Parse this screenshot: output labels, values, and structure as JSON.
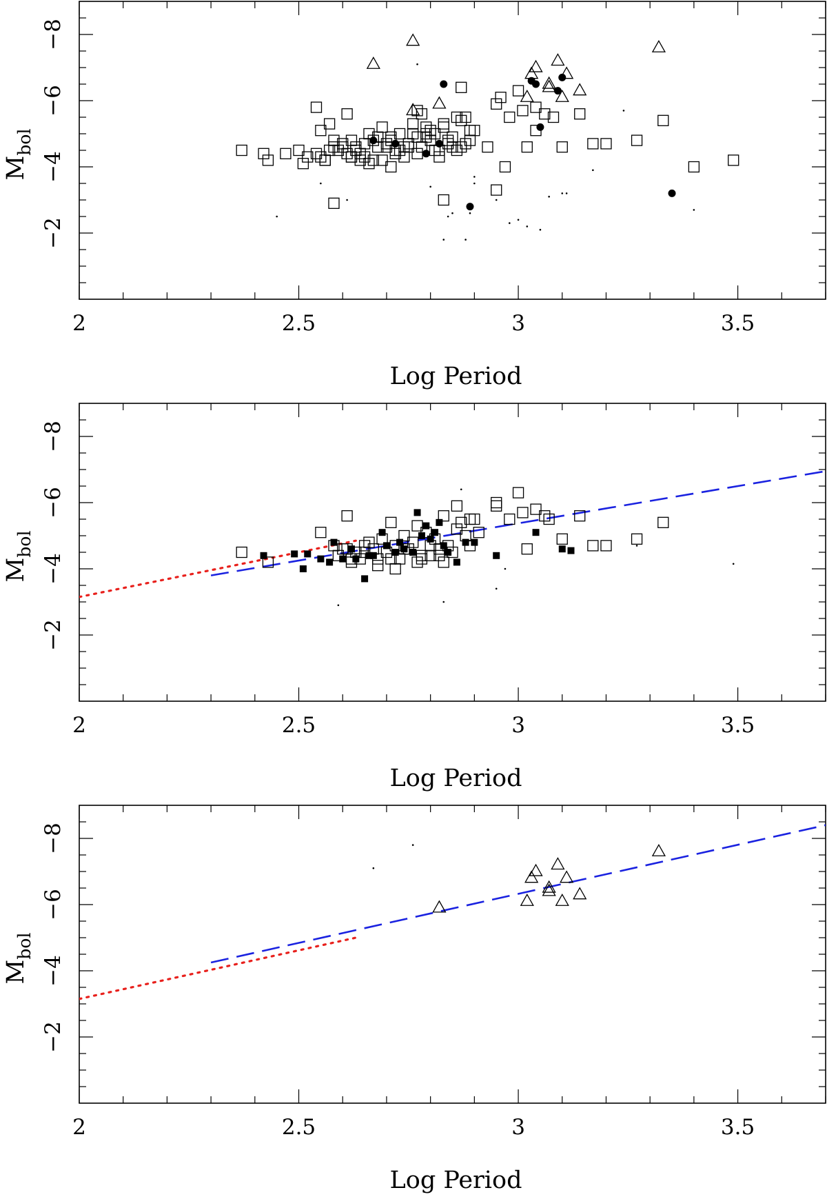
{
  "chart_data": [
    {
      "type": "scatter",
      "panel": "top",
      "xlabel": "Log Period",
      "ylabel_main": "M",
      "ylabel_sub": "bol",
      "xlim": [
        2,
        3.7
      ],
      "ylim": [
        0,
        -9
      ],
      "xticks": [
        {
          "v": 2,
          "label": "2"
        },
        {
          "v": 2.5,
          "label": "2.5"
        },
        {
          "v": 3,
          "label": "3"
        },
        {
          "v": 3.5,
          "label": "3.5"
        }
      ],
      "yticks": [
        {
          "v": -2,
          "label": "−2"
        },
        {
          "v": -4,
          "label": "−4"
        },
        {
          "v": -6,
          "label": "−6"
        },
        {
          "v": -8,
          "label": "−8"
        }
      ],
      "series": [
        {
          "name": "open-squares",
          "marker": "open-square",
          "x": [
            2.37,
            2.42,
            2.43,
            2.47,
            2.5,
            2.51,
            2.52,
            2.54,
            2.55,
            2.56,
            2.57,
            2.58,
            2.59,
            2.6,
            2.61,
            2.62,
            2.63,
            2.64,
            2.65,
            2.66,
            2.67,
            2.68,
            2.69,
            2.7,
            2.71,
            2.72,
            2.73,
            2.74,
            2.75,
            2.76,
            2.77,
            2.78,
            2.79,
            2.8,
            2.81,
            2.82,
            2.83,
            2.84,
            2.85,
            2.86,
            2.87,
            2.88,
            2.89,
            2.9,
            2.58,
            2.64,
            2.69,
            2.72,
            2.6,
            2.55,
            2.66,
            2.74,
            2.78,
            2.82,
            2.86,
            2.62,
            2.7,
            2.76,
            2.8,
            2.84,
            2.68,
            2.73,
            2.79,
            2.83,
            2.88,
            2.57,
            2.65,
            2.71,
            2.77,
            2.85,
            2.61,
            2.67,
            2.75,
            2.81,
            2.87,
            2.89,
            2.63,
            2.71,
            2.79,
            2.54,
            2.56,
            2.62,
            2.95,
            2.96,
            2.98,
            3.0,
            3.01,
            3.02,
            3.04,
            3.06,
            3.08,
            3.1,
            3.14,
            3.17,
            3.2,
            3.27,
            3.33,
            3.4,
            3.49,
            2.58,
            2.83,
            2.95,
            2.87,
            2.77,
            2.93,
            2.97,
            3.04
          ],
          "y": [
            -4.5,
            -4.4,
            -4.2,
            -4.4,
            -4.5,
            -4.1,
            -4.3,
            -4.4,
            -5.1,
            -4.2,
            -5.3,
            -4.8,
            -4.5,
            -4.6,
            -5.6,
            -4.3,
            -4.5,
            -4.2,
            -4.7,
            -5.0,
            -4.8,
            -4.9,
            -5.2,
            -4.6,
            -4.8,
            -4.5,
            -5.0,
            -4.6,
            -4.7,
            -5.3,
            -4.9,
            -5.6,
            -5.2,
            -4.8,
            -5.0,
            -4.5,
            -5.2,
            -4.7,
            -4.9,
            -5.5,
            -5.4,
            -5.5,
            -4.8,
            -5.1,
            -4.6,
            -4.4,
            -4.2,
            -4.4,
            -4.7,
            -4.3,
            -4.1,
            -4.3,
            -4.6,
            -4.3,
            -4.5,
            -4.8,
            -4.7,
            -5.0,
            -5.1,
            -4.8,
            -4.6,
            -4.5,
            -4.9,
            -5.3,
            -4.7,
            -4.5,
            -4.3,
            -4.0,
            -4.4,
            -4.6,
            -4.4,
            -4.2,
            -4.6,
            -4.5,
            -4.6,
            -5.1,
            -4.6,
            -4.9,
            -5.0,
            -5.8,
            -4.2,
            -4.3,
            -5.9,
            -6.1,
            -5.5,
            -6.3,
            -5.7,
            -4.6,
            -5.1,
            -5.6,
            -5.5,
            -4.6,
            -5.6,
            -4.7,
            -4.7,
            -4.8,
            -5.4,
            -4.0,
            -4.2,
            -2.9,
            -3.0,
            -3.3,
            -6.4,
            -5.7,
            -4.6,
            -4.0,
            -5.8
          ]
        },
        {
          "name": "filled-circles",
          "marker": "filled-circle",
          "x": [
            2.83,
            2.89,
            2.79,
            3.03,
            3.04,
            3.05,
            3.09,
            3.1,
            3.35,
            2.72,
            2.67,
            2.82
          ],
          "y": [
            -6.5,
            -2.8,
            -4.4,
            -6.6,
            -6.5,
            -5.2,
            -6.3,
            -6.7,
            -3.2,
            -4.7,
            -4.8,
            -4.7
          ]
        },
        {
          "name": "open-triangles",
          "marker": "open-triangle",
          "x": [
            2.67,
            2.76,
            2.76,
            2.82,
            3.02,
            3.03,
            3.04,
            3.07,
            3.07,
            3.09,
            3.1,
            3.11,
            3.14,
            3.32
          ],
          "y": [
            -7.1,
            -7.8,
            -5.7,
            -5.9,
            -6.1,
            -6.8,
            -7.0,
            -6.5,
            -6.4,
            -7.2,
            -6.1,
            -6.8,
            -6.3,
            -7.6
          ]
        },
        {
          "name": "small-dots",
          "marker": "dot",
          "x": [
            2.45,
            2.55,
            2.61,
            2.77,
            2.84,
            2.85,
            2.88,
            2.9,
            2.98,
            3.0,
            3.02,
            3.05,
            3.1,
            3.17,
            3.24,
            3.4,
            2.83,
            2.89,
            2.95,
            2.9,
            3.07,
            3.11,
            2.8
          ],
          "y": [
            -2.5,
            -3.5,
            -3.0,
            -7.1,
            -2.5,
            -2.6,
            -1.8,
            -3.5,
            -2.3,
            -2.4,
            -2.2,
            -2.1,
            -3.2,
            -3.9,
            -5.7,
            -2.7,
            -1.8,
            -2.6,
            -3.0,
            -3.7,
            -3.1,
            -3.2,
            -3.4
          ]
        }
      ],
      "lines": []
    },
    {
      "type": "scatter",
      "panel": "middle",
      "xlabel": "Log Period",
      "ylabel_main": "M",
      "ylabel_sub": "bol",
      "xlim": [
        2,
        3.7
      ],
      "ylim": [
        0,
        -9
      ],
      "xticks": [
        {
          "v": 2,
          "label": "2"
        },
        {
          "v": 2.5,
          "label": "2.5"
        },
        {
          "v": 3,
          "label": "3"
        },
        {
          "v": 3.5,
          "label": "3.5"
        }
      ],
      "yticks": [
        {
          "v": -2,
          "label": "−2"
        },
        {
          "v": -4,
          "label": "−4"
        },
        {
          "v": -6,
          "label": "−6"
        },
        {
          "v": -8,
          "label": "−8"
        }
      ],
      "series": [
        {
          "name": "open-squares",
          "marker": "open-square",
          "x": [
            2.37,
            2.43,
            2.55,
            2.58,
            2.59,
            2.6,
            2.61,
            2.62,
            2.63,
            2.64,
            2.65,
            2.66,
            2.67,
            2.68,
            2.69,
            2.7,
            2.71,
            2.72,
            2.73,
            2.74,
            2.75,
            2.76,
            2.77,
            2.78,
            2.79,
            2.8,
            2.81,
            2.82,
            2.83,
            2.84,
            2.85,
            2.86,
            2.87,
            2.88,
            2.89,
            2.9,
            2.91,
            2.62,
            2.68,
            2.74,
            2.8,
            2.86,
            2.65,
            2.71,
            2.77,
            2.83,
            2.89,
            2.95,
            2.95,
            2.98,
            3.0,
            3.01,
            3.02,
            3.04,
            3.06,
            3.07,
            3.1,
            3.14,
            3.17,
            3.2,
            3.27,
            3.33,
            2.61,
            2.78,
            2.72,
            2.82
          ],
          "y": [
            -4.5,
            -4.2,
            -5.1,
            -4.7,
            -4.4,
            -4.6,
            -5.6,
            -4.2,
            -4.5,
            -4.3,
            -4.7,
            -4.8,
            -4.6,
            -4.3,
            -4.9,
            -4.5,
            -5.4,
            -4.7,
            -4.3,
            -5.0,
            -4.6,
            -4.8,
            -5.3,
            -4.4,
            -5.1,
            -4.7,
            -4.9,
            -4.4,
            -5.6,
            -4.7,
            -4.5,
            -5.9,
            -5.4,
            -5.0,
            -5.5,
            -5.5,
            -5.1,
            -4.3,
            -4.1,
            -4.6,
            -4.4,
            -5.2,
            -4.5,
            -4.3,
            -4.2,
            -4.2,
            -4.7,
            -6.0,
            -5.9,
            -5.5,
            -6.3,
            -5.7,
            -4.6,
            -5.8,
            -5.6,
            -5.5,
            -4.9,
            -5.6,
            -4.7,
            -4.7,
            -4.9,
            -5.4,
            -4.6,
            -4.3,
            -4.0,
            -4.6
          ]
        },
        {
          "name": "filled-squares",
          "marker": "filled-square",
          "x": [
            2.42,
            2.49,
            2.51,
            2.52,
            2.55,
            2.57,
            2.58,
            2.6,
            2.62,
            2.63,
            2.65,
            2.67,
            2.69,
            2.7,
            2.72,
            2.74,
            2.76,
            2.77,
            2.79,
            2.8,
            2.81,
            2.83,
            2.84,
            2.86,
            2.88,
            2.9,
            2.95,
            3.04,
            3.1,
            3.12,
            2.66,
            2.73,
            2.78,
            2.82
          ],
          "y": [
            -4.4,
            -4.45,
            -4.0,
            -4.45,
            -4.3,
            -4.2,
            -4.8,
            -4.3,
            -4.6,
            -4.3,
            -3.7,
            -4.4,
            -5.1,
            -4.7,
            -4.5,
            -4.6,
            -4.5,
            -5.7,
            -5.3,
            -4.9,
            -5.1,
            -4.7,
            -4.5,
            -4.2,
            -4.8,
            -4.8,
            -4.4,
            -5.1,
            -4.6,
            -4.55,
            -4.4,
            -4.8,
            -5.0,
            -5.4
          ]
        },
        {
          "name": "small-dots",
          "marker": "dot",
          "x": [
            2.59,
            2.83,
            2.87,
            2.95,
            2.97,
            3.27,
            3.49
          ],
          "y": [
            -2.9,
            -3.0,
            -6.4,
            -3.4,
            -4.0,
            -4.7,
            -4.15
          ]
        }
      ],
      "lines": [
        {
          "name": "red-dotted-fit",
          "style": "dotted",
          "color": "#e8201c",
          "x": [
            2.0,
            2.63
          ],
          "y": [
            -3.15,
            -4.85
          ]
        },
        {
          "name": "blue-dashed-fit",
          "style": "dashed",
          "color": "#1a22e0",
          "x": [
            2.3,
            3.7
          ],
          "y": [
            -3.8,
            -6.95
          ]
        }
      ]
    },
    {
      "type": "scatter",
      "panel": "bottom",
      "xlabel": "Log Period",
      "ylabel_main": "M",
      "ylabel_sub": "bol",
      "xlim": [
        2,
        3.7
      ],
      "ylim": [
        0,
        -9
      ],
      "xticks": [
        {
          "v": 2,
          "label": "2"
        },
        {
          "v": 2.5,
          "label": "2.5"
        },
        {
          "v": 3,
          "label": "3"
        },
        {
          "v": 3.5,
          "label": "3.5"
        }
      ],
      "yticks": [
        {
          "v": -2,
          "label": "−2"
        },
        {
          "v": -4,
          "label": "−4"
        },
        {
          "v": -6,
          "label": "−6"
        },
        {
          "v": -8,
          "label": "−8"
        }
      ],
      "series": [
        {
          "name": "open-triangles",
          "marker": "open-triangle",
          "x": [
            2.82,
            3.02,
            3.03,
            3.04,
            3.07,
            3.07,
            3.09,
            3.1,
            3.11,
            3.14,
            3.32
          ],
          "y": [
            -5.9,
            -6.1,
            -6.8,
            -7.0,
            -6.5,
            -6.4,
            -7.2,
            -6.1,
            -6.8,
            -6.3,
            -7.6
          ]
        },
        {
          "name": "small-dots",
          "marker": "dot",
          "x": [
            2.67,
            2.76
          ],
          "y": [
            -7.1,
            -7.8
          ]
        }
      ],
      "lines": [
        {
          "name": "red-dotted-fit",
          "style": "dotted",
          "color": "#e8201c",
          "x": [
            2.0,
            2.63
          ],
          "y": [
            -3.15,
            -5.0
          ]
        },
        {
          "name": "blue-dashed-fit",
          "style": "dashed",
          "color": "#1a22e0",
          "x": [
            2.3,
            3.7
          ],
          "y": [
            -4.25,
            -8.4
          ]
        }
      ]
    }
  ]
}
